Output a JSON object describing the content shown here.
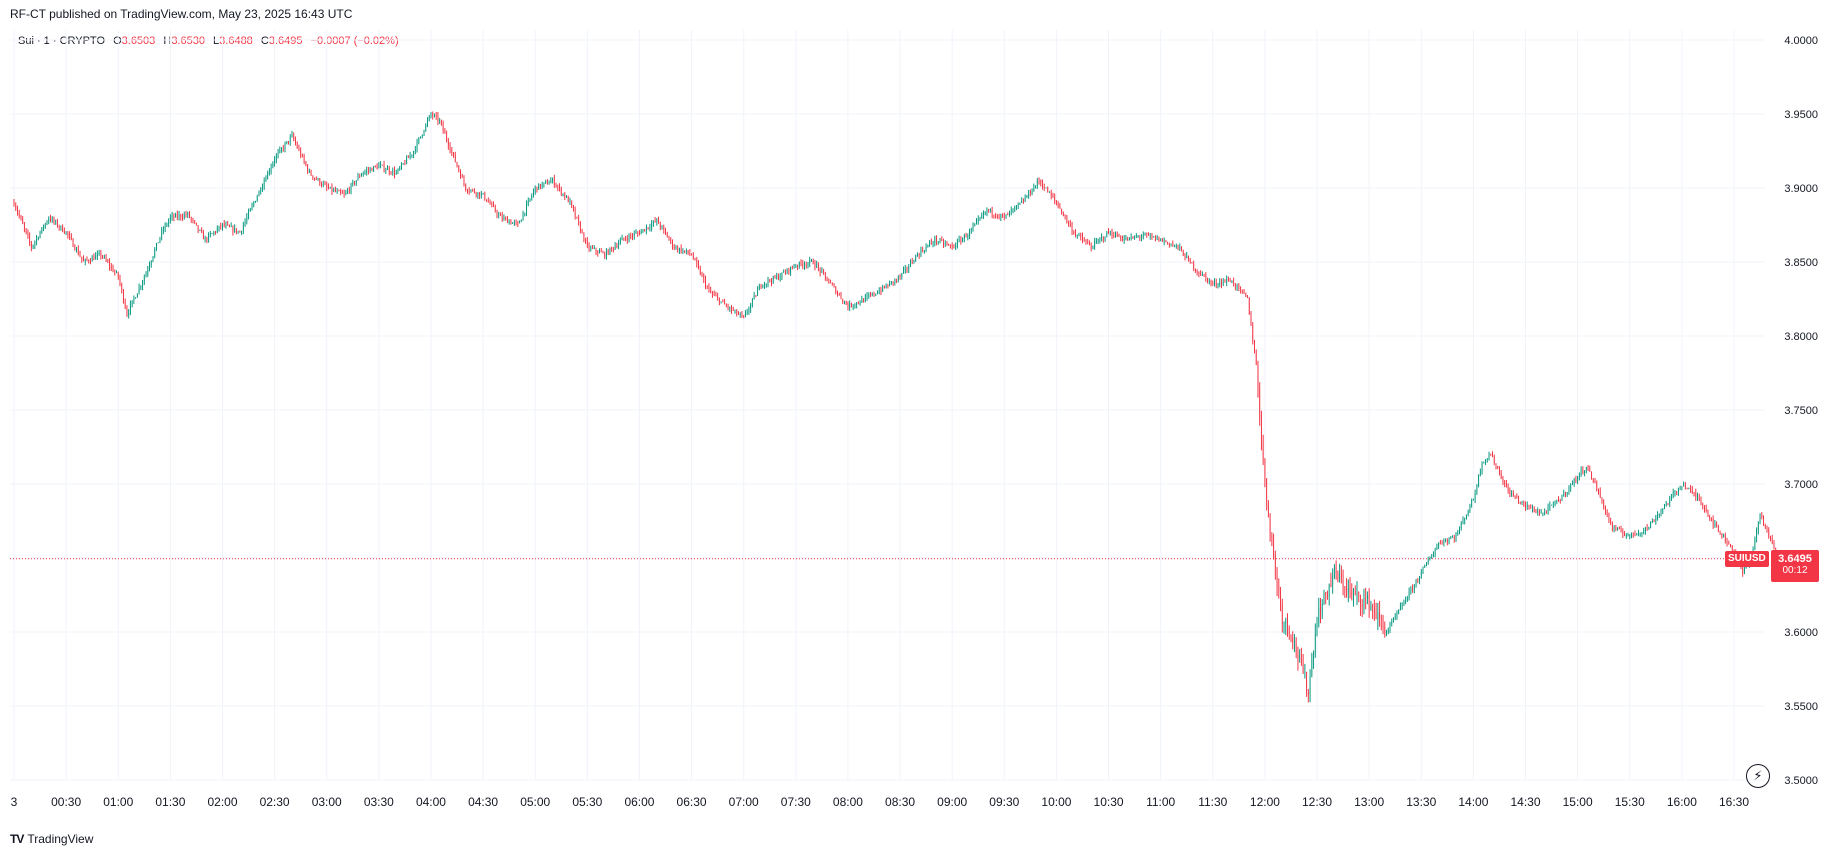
{
  "header": {
    "published": "RF-CT published on TradingView.com, May 23, 2025 16:43 UTC"
  },
  "legend": {
    "symbol": "Sui · 1 · CRYPTO",
    "o_label": "O",
    "o_value": "3.6503",
    "h_label": "H",
    "h_value": "3.6530",
    "l_label": "L",
    "l_value": "3.6488",
    "c_label": "C",
    "c_value": "3.6495",
    "change": "−0.0007 (−0.02%)"
  },
  "price_tag": {
    "symbol": "SUIUSD",
    "price": "3.6495",
    "countdown": "00:12"
  },
  "footer": {
    "brand": "TradingView",
    "logo": "TV"
  },
  "colors": {
    "up": "#089981",
    "down": "#f23645",
    "grid": "#f0f3fa",
    "text": "#131722"
  },
  "icons": {
    "footer_logo": "tradingview-logo-icon",
    "reset": "lightning-icon"
  },
  "chart_data": {
    "type": "candlestick",
    "title": "",
    "xlabel": "",
    "ylabel": "",
    "ylim": [
      3.5,
      4.0
    ],
    "y_ticks": [
      "4.0000",
      "3.9500",
      "3.9000",
      "3.8500",
      "3.8000",
      "3.7500",
      "3.7000",
      "3.6500",
      "3.6000",
      "3.5500",
      "3.5000"
    ],
    "x_ticks": [
      "3",
      "00:30",
      "01:00",
      "01:30",
      "02:00",
      "02:30",
      "03:00",
      "03:30",
      "04:00",
      "04:30",
      "05:00",
      "05:30",
      "06:00",
      "06:30",
      "07:00",
      "07:30",
      "08:00",
      "08:30",
      "09:00",
      "09:30",
      "10:00",
      "10:30",
      "11:00",
      "11:30",
      "12:00",
      "12:30",
      "13:00",
      "13:30",
      "14:00",
      "14:30",
      "15:00",
      "15:30",
      "16:00",
      "16:30"
    ],
    "grid": true,
    "last_price": 3.6495,
    "series": [
      {
        "close_path": [
          [
            "00:00",
            3.89
          ],
          [
            "00:10",
            3.86
          ],
          [
            "00:20",
            3.88
          ],
          [
            "00:30",
            3.87
          ],
          [
            "00:40",
            3.85
          ],
          [
            "00:50",
            3.855
          ],
          [
            "01:00",
            3.84
          ],
          [
            "01:05",
            3.815
          ],
          [
            "01:15",
            3.84
          ],
          [
            "01:25",
            3.87
          ],
          [
            "01:30",
            3.88
          ],
          [
            "01:40",
            3.882
          ],
          [
            "01:50",
            3.865
          ],
          [
            "02:00",
            3.875
          ],
          [
            "02:10",
            3.87
          ],
          [
            "02:20",
            3.895
          ],
          [
            "02:30",
            3.92
          ],
          [
            "02:40",
            3.935
          ],
          [
            "02:50",
            3.91
          ],
          [
            "03:00",
            3.9
          ],
          [
            "03:10",
            3.895
          ],
          [
            "03:20",
            3.91
          ],
          [
            "03:30",
            3.915
          ],
          [
            "03:40",
            3.91
          ],
          [
            "03:50",
            3.925
          ],
          [
            "04:00",
            3.95
          ],
          [
            "04:05",
            3.945
          ],
          [
            "04:10",
            3.93
          ],
          [
            "04:20",
            3.9
          ],
          [
            "04:30",
            3.895
          ],
          [
            "04:40",
            3.88
          ],
          [
            "04:50",
            3.875
          ],
          [
            "05:00",
            3.9
          ],
          [
            "05:10",
            3.905
          ],
          [
            "05:20",
            3.89
          ],
          [
            "05:30",
            3.86
          ],
          [
            "05:40",
            3.855
          ],
          [
            "05:50",
            3.865
          ],
          [
            "06:00",
            3.87
          ],
          [
            "06:10",
            3.878
          ],
          [
            "06:20",
            3.86
          ],
          [
            "06:30",
            3.855
          ],
          [
            "06:40",
            3.83
          ],
          [
            "06:50",
            3.82
          ],
          [
            "07:00",
            3.812
          ],
          [
            "07:10",
            3.835
          ],
          [
            "07:20",
            3.84
          ],
          [
            "07:30",
            3.848
          ],
          [
            "07:40",
            3.85
          ],
          [
            "07:50",
            3.835
          ],
          [
            "08:00",
            3.82
          ],
          [
            "08:10",
            3.825
          ],
          [
            "08:20",
            3.832
          ],
          [
            "08:30",
            3.84
          ],
          [
            "08:40",
            3.855
          ],
          [
            "08:50",
            3.865
          ],
          [
            "09:00",
            3.86
          ],
          [
            "09:10",
            3.87
          ],
          [
            "09:20",
            3.885
          ],
          [
            "09:30",
            3.88
          ],
          [
            "09:40",
            3.89
          ],
          [
            "09:50",
            3.905
          ],
          [
            "10:00",
            3.89
          ],
          [
            "10:10",
            3.87
          ],
          [
            "10:20",
            3.86
          ],
          [
            "10:30",
            3.87
          ],
          [
            "10:40",
            3.865
          ],
          [
            "10:50",
            3.868
          ],
          [
            "11:00",
            3.865
          ],
          [
            "11:10",
            3.86
          ],
          [
            "11:20",
            3.845
          ],
          [
            "11:30",
            3.835
          ],
          [
            "11:40",
            3.838
          ],
          [
            "11:50",
            3.825
          ],
          [
            "11:55",
            3.78
          ],
          [
            "12:00",
            3.7
          ],
          [
            "12:05",
            3.65
          ],
          [
            "12:10",
            3.61
          ],
          [
            "12:15",
            3.6
          ],
          [
            "12:20",
            3.58
          ],
          [
            "12:25",
            3.56
          ],
          [
            "12:30",
            3.61
          ],
          [
            "12:40",
            3.64
          ],
          [
            "12:50",
            3.625
          ],
          [
            "13:00",
            3.62
          ],
          [
            "13:10",
            3.6
          ],
          [
            "13:20",
            3.62
          ],
          [
            "13:30",
            3.64
          ],
          [
            "13:40",
            3.66
          ],
          [
            "13:50",
            3.665
          ],
          [
            "14:00",
            3.69
          ],
          [
            "14:05",
            3.715
          ],
          [
            "14:10",
            3.72
          ],
          [
            "14:20",
            3.695
          ],
          [
            "14:30",
            3.685
          ],
          [
            "14:40",
            3.68
          ],
          [
            "14:50",
            3.69
          ],
          [
            "15:00",
            3.705
          ],
          [
            "15:05",
            3.712
          ],
          [
            "15:10",
            3.7
          ],
          [
            "15:20",
            3.67
          ],
          [
            "15:30",
            3.665
          ],
          [
            "15:40",
            3.67
          ],
          [
            "15:50",
            3.685
          ],
          [
            "16:00",
            3.7
          ],
          [
            "16:10",
            3.69
          ],
          [
            "16:20",
            3.67
          ],
          [
            "16:30",
            3.655
          ],
          [
            "16:35",
            3.64
          ],
          [
            "16:40",
            3.65
          ],
          [
            "16:45",
            3.68
          ],
          [
            "16:50",
            3.665
          ],
          [
            "16:55",
            3.65
          ],
          [
            "17:00",
            3.6495
          ]
        ]
      }
    ]
  }
}
